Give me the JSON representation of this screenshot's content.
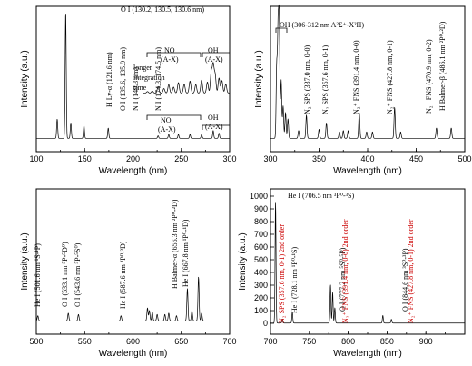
{
  "chart_data": [
    {
      "type": "line",
      "xlabel": "Wavelength (nm)",
      "ylabel": "Intensity (a.u.)",
      "xlim": [
        100,
        300
      ],
      "xticks": [
        100,
        150,
        200,
        250,
        300
      ],
      "annotations": [
        {
          "text": "H Ly-α (121.6 nm)",
          "x": 121.6,
          "orientation": "vertical"
        },
        {
          "text": "O I (130.2, 130.5, 130.6 nm)",
          "x": 130.4,
          "orientation": "horizontal"
        },
        {
          "text": "O I (135.6, 135.9 nm)",
          "x": 135.7,
          "orientation": "vertical"
        },
        {
          "text": "N I (149.3 nm)",
          "x": 149.3,
          "orientation": "vertical"
        },
        {
          "text": "N I (174.3, 174.5 nm)",
          "x": 174.4,
          "orientation": "vertical"
        },
        {
          "text": "longer",
          "orientation": "horizontal"
        },
        {
          "text": "integration",
          "orientation": "horizontal"
        },
        {
          "text": "time",
          "orientation": "horizontal"
        },
        {
          "text": "NO",
          "orientation": "horizontal"
        },
        {
          "text": "(A-X)",
          "orientation": "horizontal"
        },
        {
          "text": "NO",
          "orientation": "horizontal"
        },
        {
          "text": "(A-X)",
          "orientation": "horizontal"
        },
        {
          "text": "OH",
          "orientation": "horizontal"
        },
        {
          "text": "(A-X)",
          "orientation": "horizontal"
        },
        {
          "text": "OH",
          "orientation": "horizontal"
        },
        {
          "text": "(A-X)",
          "orientation": "horizontal"
        }
      ],
      "series": [
        {
          "peaks": [
            [
              121.6,
              0.15
            ],
            [
              130.4,
              0.98
            ],
            [
              135.7,
              0.12
            ],
            [
              149.3,
              0.1
            ],
            [
              174.4,
              0.08
            ],
            [
              226,
              0.02
            ],
            [
              237,
              0.03
            ],
            [
              247,
              0.03
            ],
            [
              259,
              0.03
            ],
            [
              271,
              0.03
            ],
            [
              283,
              0.06
            ],
            [
              289,
              0.04
            ]
          ]
        },
        {
          "peaks": [
            [
              215,
              0.03
            ],
            [
              220,
              0.04
            ],
            [
              226,
              0.13
            ],
            [
              232,
              0.09
            ],
            [
              237,
              0.17
            ],
            [
              242,
              0.12
            ],
            [
              247,
              0.21
            ],
            [
              253,
              0.18
            ],
            [
              259,
              0.24
            ],
            [
              265,
              0.17
            ],
            [
              271,
              0.26
            ],
            [
              277,
              0.22
            ],
            [
              281,
              0.42
            ],
            [
              283,
              0.55
            ],
            [
              285,
              0.36
            ],
            [
              289,
              0.3
            ],
            [
              292,
              0.25
            ],
            [
              296,
              0.18
            ]
          ]
        }
      ]
    },
    {
      "type": "line",
      "xlabel": "Wavelength (nm)",
      "ylabel": "Intensity (a.u.)",
      "xlim": [
        300,
        500
      ],
      "xticks": [
        300,
        350,
        400,
        450,
        500
      ],
      "annotations": [
        {
          "text": "OH (306-312 nm A²Σ⁺-X²Π)",
          "x": 309,
          "orientation": "horizontal"
        },
        {
          "text": "N₂ SPS (337.0 nm, 0-0)",
          "x": 337.0,
          "orientation": "vertical"
        },
        {
          "text": "N₂ SPS (357.6 nm, 0-1)",
          "x": 357.6,
          "orientation": "vertical"
        },
        {
          "text": "N₂⁺ FNS (391.4 nm, 0-0)",
          "x": 391.4,
          "orientation": "vertical"
        },
        {
          "text": "N₂⁺ FNS (427.8 nm, 0-1)",
          "x": 427.8,
          "orientation": "vertical"
        },
        {
          "text": "N₂⁺ FNS (470.9 nm, 0-2)",
          "x": 470.9,
          "orientation": "vertical"
        },
        {
          "text": "H Balmer-β (486.1 nm ²P⁰-²D)",
          "x": 486.1,
          "orientation": "vertical"
        }
      ],
      "series": [
        {
          "peaks": [
            [
              306.4,
              0.55
            ],
            [
              307.8,
              0.8
            ],
            [
              309.0,
              0.88
            ],
            [
              311.0,
              0.45
            ],
            [
              313.0,
              0.25
            ],
            [
              315.5,
              0.2
            ],
            [
              318.0,
              0.15
            ],
            [
              329,
              0.06
            ],
            [
              337.0,
              0.18
            ],
            [
              350,
              0.07
            ],
            [
              357.6,
              0.12
            ],
            [
              371,
              0.05
            ],
            [
              375,
              0.06
            ],
            [
              380,
              0.06
            ],
            [
              391.4,
              0.2
            ],
            [
              399,
              0.05
            ],
            [
              405,
              0.05
            ],
            [
              427.8,
              0.24
            ],
            [
              434,
              0.05
            ],
            [
              470.9,
              0.08
            ],
            [
              486.1,
              0.08
            ]
          ]
        }
      ]
    },
    {
      "type": "line",
      "xlabel": "Wavelength (nm)",
      "ylabel": "Intensity (a.u.)",
      "xlim": [
        500,
        700
      ],
      "xticks": [
        500,
        550,
        600,
        650,
        700
      ],
      "annotations": [
        {
          "text": "He I (501.6 nm ¹S-¹P)",
          "x": 501.6,
          "orientation": "vertical"
        },
        {
          "text": "O I (533.1 nm ⁵P-⁵D⁰)",
          "x": 533.1,
          "orientation": "vertical"
        },
        {
          "text": "O I (543.6 nm ⁵P-⁵S⁰)",
          "x": 543.6,
          "orientation": "vertical"
        },
        {
          "text": "He I (587.6 nm ³P⁰-³D)",
          "x": 587.6,
          "orientation": "vertical"
        },
        {
          "text": "H Balmer-α (656.3 nm ²P⁰-²D)",
          "x": 656.3,
          "orientation": "vertical"
        },
        {
          "text": "He I (667.8 nm ¹P⁰-¹D)",
          "x": 667.8,
          "orientation": "vertical"
        }
      ],
      "series": [
        {
          "peaks": [
            [
              501.6,
              0.04
            ],
            [
              533.1,
              0.06
            ],
            [
              543.6,
              0.05
            ],
            [
              587.6,
              0.04
            ],
            [
              615,
              0.1
            ],
            [
              617,
              0.08
            ],
            [
              620,
              0.07
            ],
            [
              625,
              0.05
            ],
            [
              633,
              0.05
            ],
            [
              637,
              0.06
            ],
            [
              645,
              0.04
            ],
            [
              656.3,
              0.25
            ],
            [
              661,
              0.08
            ],
            [
              667.8,
              0.34
            ],
            [
              671,
              0.06
            ]
          ]
        }
      ]
    },
    {
      "type": "line",
      "xlabel": "Wavelength (nm)",
      "ylabel": "Intensity (a.u.)",
      "xlim": [
        700,
        950
      ],
      "ylim": [
        0,
        1000
      ],
      "yticks": [
        0,
        100,
        200,
        300,
        400,
        500,
        600,
        700,
        800,
        900,
        1000
      ],
      "xticks": [
        700,
        750,
        800,
        850,
        900
      ],
      "annotations": [
        {
          "text": "He I (706.5 nm ³P⁰-³S)",
          "x": 706.5,
          "orientation": "horizontal",
          "color": "#000000"
        },
        {
          "text": "N₂ SPS (357.6 nm, 0-1) 2nd order",
          "x": 715.2,
          "orientation": "vertical",
          "color": "#cc0000"
        },
        {
          "text": "He I (728.1 nm ¹P⁰-¹S)",
          "x": 728.1,
          "orientation": "vertical",
          "color": "#000000"
        },
        {
          "text": "O I (777.2 nm ⁵S⁰-⁵P)",
          "x": 777.2,
          "orientation": "vertical",
          "color": "#000000"
        },
        {
          "text": "N₂⁺ FNS (391.4 nm, 0-0) 2nd order",
          "x": 782.8,
          "orientation": "vertical",
          "color": "#cc0000"
        },
        {
          "text": "O I (844.6 nm ³S⁰-³P)",
          "x": 844.6,
          "orientation": "vertical",
          "color": "#000000"
        },
        {
          "text": "N₂⁺ FNS (427.8 nm, 0-1) 2nd order",
          "x": 855.6,
          "orientation": "vertical",
          "color": "#cc0000"
        }
      ],
      "series": [
        {
          "peaks": [
            [
              706.5,
              950
            ],
            [
              715.2,
              30
            ],
            [
              728.1,
              85
            ],
            [
              777.2,
              300
            ],
            [
              780,
              240
            ],
            [
              782.8,
              120
            ],
            [
              844.6,
              60
            ],
            [
              855.6,
              30
            ]
          ]
        }
      ]
    }
  ]
}
